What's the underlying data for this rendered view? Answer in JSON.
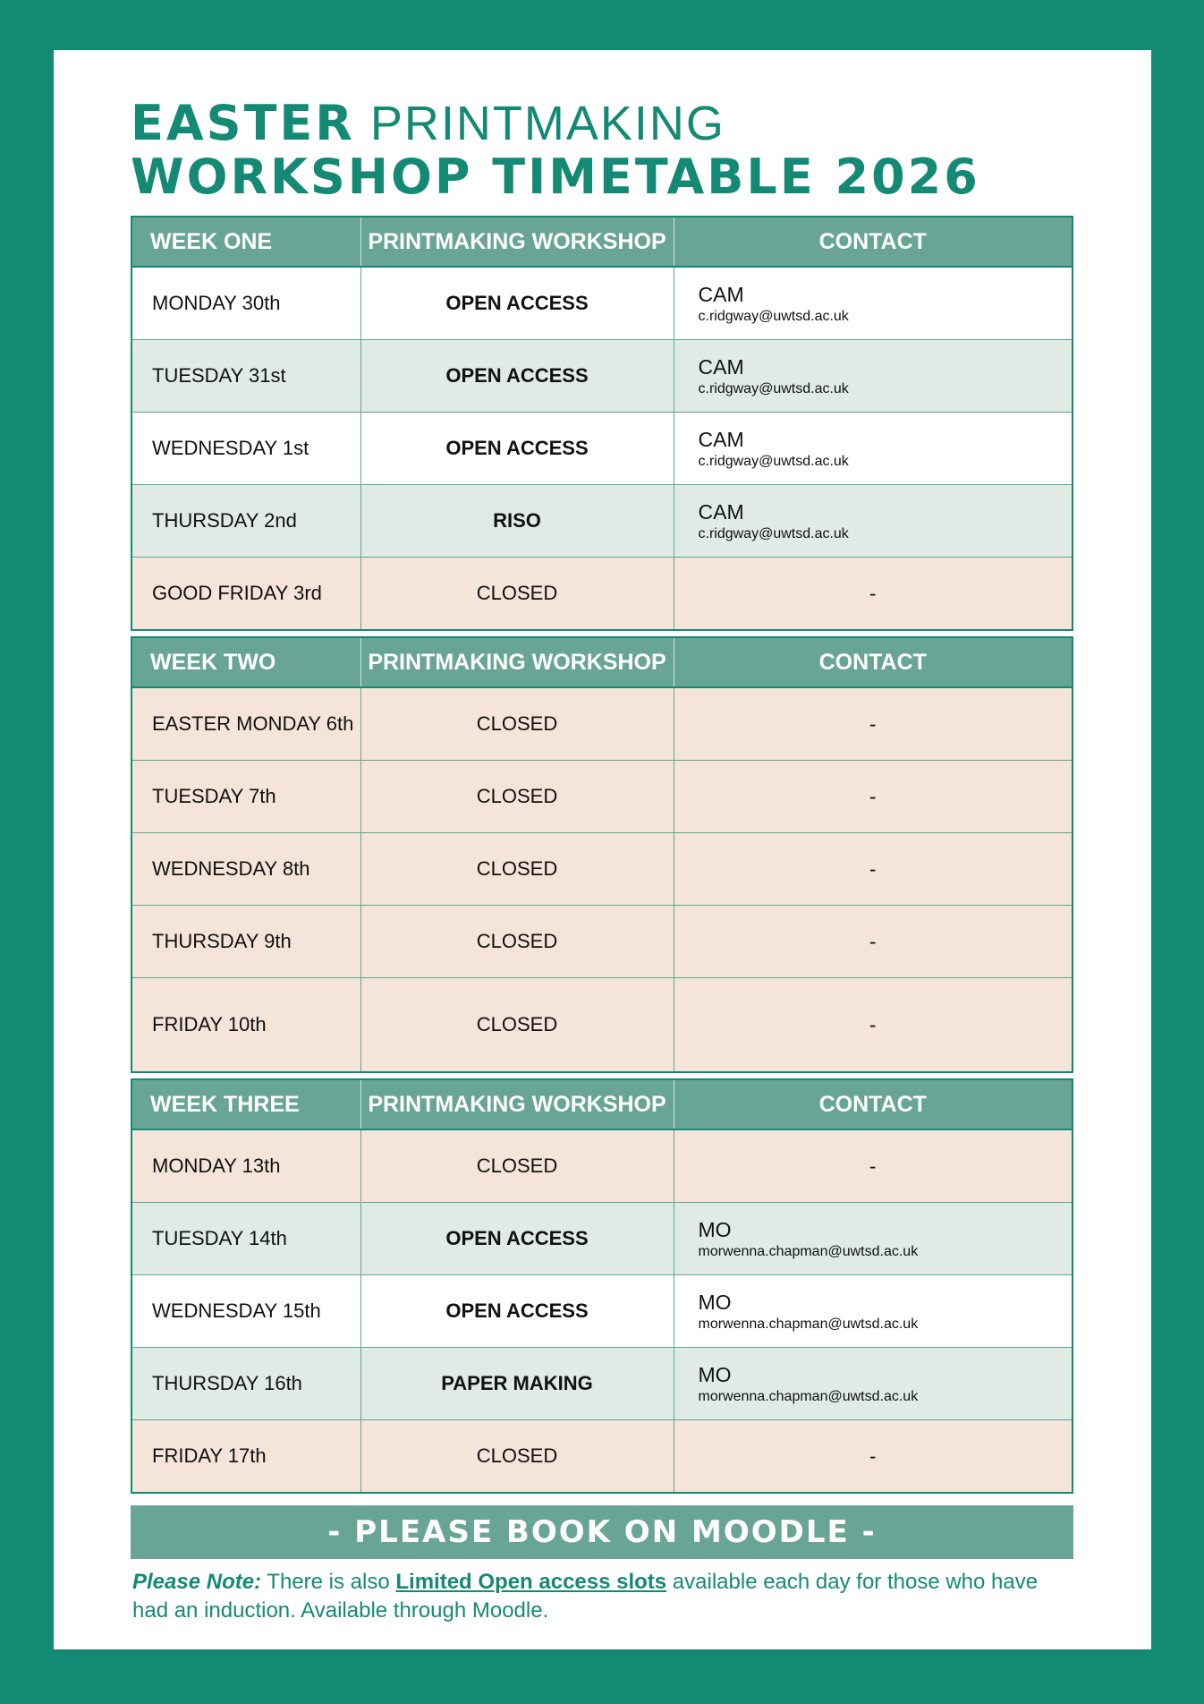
{
  "title": {
    "line1_bold": "EASTER",
    "line1_light": "PRINTMAKING",
    "line2": "WORKSHOP TIMETABLE 2026"
  },
  "colors": {
    "brand": "#148a74",
    "header": "#68a594",
    "open": "#e0ebe5",
    "closed": "#f5e4d9"
  },
  "weeks": [
    {
      "headers": [
        "WEEK ONE",
        "PRINTMAKING WORKSHOP",
        "CONTACT"
      ],
      "rows": [
        {
          "day": "MONDAY 30th",
          "workshop": "OPEN ACCESS",
          "bold": true,
          "contact": "CAM",
          "email": "c.ridgway@uwtsd.ac.uk",
          "style": "white"
        },
        {
          "day": "TUESDAY 31st",
          "workshop": "OPEN ACCESS",
          "bold": true,
          "contact": "CAM",
          "email": "c.ridgway@uwtsd.ac.uk",
          "style": "green"
        },
        {
          "day": "WEDNESDAY 1st",
          "workshop": "OPEN ACCESS",
          "bold": true,
          "contact": "CAM",
          "email": "c.ridgway@uwtsd.ac.uk",
          "style": "white"
        },
        {
          "day": "THURSDAY 2nd",
          "workshop": "RISO",
          "bold": true,
          "contact": "CAM",
          "email": "c.ridgway@uwtsd.ac.uk",
          "style": "green"
        },
        {
          "day": "GOOD FRIDAY 3rd",
          "workshop": "CLOSED",
          "bold": false,
          "contact": "-",
          "email": "",
          "style": "peach"
        }
      ]
    },
    {
      "headers": [
        "WEEK TWO",
        "PRINTMAKING WORKSHOP",
        "CONTACT"
      ],
      "rows": [
        {
          "day": "EASTER MONDAY 6th",
          "workshop": "CLOSED",
          "bold": false,
          "contact": "-",
          "email": "",
          "style": "peach"
        },
        {
          "day": "TUESDAY 7th",
          "workshop": "CLOSED",
          "bold": false,
          "contact": "-",
          "email": "",
          "style": "peach"
        },
        {
          "day": "WEDNESDAY 8th",
          "workshop": "CLOSED",
          "bold": false,
          "contact": "-",
          "email": "",
          "style": "peach"
        },
        {
          "day": "THURSDAY 9th",
          "workshop": "CLOSED",
          "bold": false,
          "contact": "-",
          "email": "",
          "style": "peach"
        },
        {
          "day": "FRIDAY 10th",
          "workshop": "CLOSED",
          "bold": false,
          "contact": "-",
          "email": "",
          "style": "peach tall"
        }
      ]
    },
    {
      "headers": [
        "WEEK THREE",
        "PRINTMAKING WORKSHOP",
        "CONTACT"
      ],
      "rows": [
        {
          "day": "MONDAY 13th",
          "workshop": "CLOSED",
          "bold": false,
          "contact": "-",
          "email": "",
          "style": "peach"
        },
        {
          "day": "TUESDAY 14th",
          "workshop": "OPEN ACCESS",
          "bold": true,
          "contact": "MO",
          "email": "morwenna.chapman@uwtsd.ac.uk",
          "style": "green"
        },
        {
          "day": "WEDNESDAY 15th",
          "workshop": "OPEN ACCESS",
          "bold": true,
          "contact": "MO",
          "email": "morwenna.chapman@uwtsd.ac.uk",
          "style": "white"
        },
        {
          "day": "THURSDAY 16th",
          "workshop": "PAPER MAKING",
          "bold": true,
          "contact": "MO",
          "email": "morwenna.chapman@uwtsd.ac.uk",
          "style": "green"
        },
        {
          "day": "FRIDAY 17th",
          "workshop": "CLOSED",
          "bold": false,
          "contact": "-",
          "email": "",
          "style": "peach"
        }
      ]
    }
  ],
  "banner": "- PLEASE BOOK ON MOODLE -",
  "note": {
    "label": "Please Note:",
    "pre": " There is also ",
    "link": "Limited Open access slots",
    "post": " available each day for those who have had an induction. Available through Moodle."
  }
}
